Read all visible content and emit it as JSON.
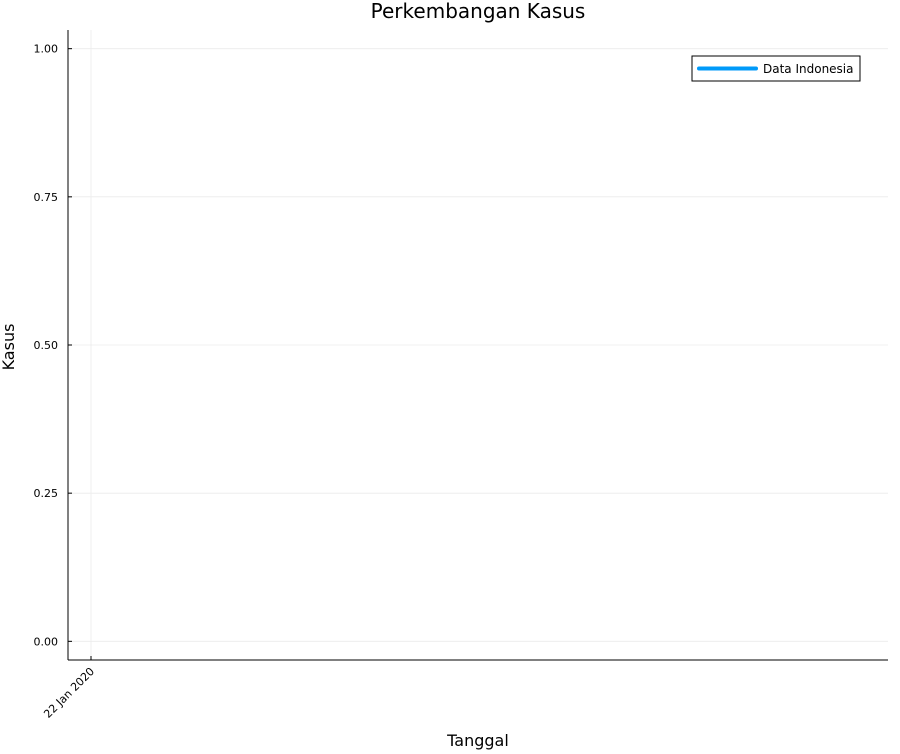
{
  "chart_data": {
    "type": "line",
    "title": "Perkembangan Kasus",
    "xlabel": "Tanggal",
    "ylabel": "Kasus",
    "x_ticks": [
      "22 Jan 2020"
    ],
    "y_ticks": [
      "0.00",
      "0.25",
      "0.50",
      "0.75",
      "1.00"
    ],
    "ylim": [
      0,
      1
    ],
    "grid": true,
    "legend_position": "top-right",
    "series": [
      {
        "name": "Data Indonesia",
        "color": "#009AF9",
        "x": [],
        "y": []
      }
    ]
  }
}
